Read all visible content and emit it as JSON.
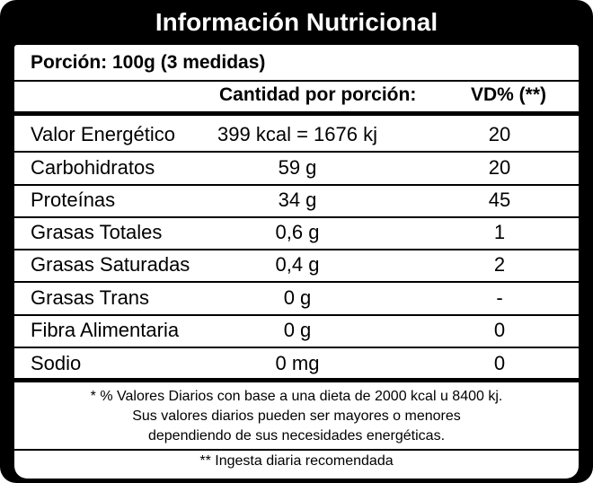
{
  "title": "Información Nutricional",
  "portion": "Porción: 100g (3 medidas)",
  "headers": {
    "quantity": "Cantidad por porción:",
    "vd": "VD% (**)"
  },
  "rows": [
    {
      "name": "Valor Energético",
      "quantity": "399 kcal = 1676 kj",
      "vd": "20"
    },
    {
      "name": "Carbohidratos",
      "quantity": "59 g",
      "vd": "20"
    },
    {
      "name": "Proteínas",
      "quantity": "34 g",
      "vd": "45"
    },
    {
      "name": "Grasas Totales",
      "quantity": "0,6 g",
      "vd": "1"
    },
    {
      "name": "Grasas Saturadas",
      "quantity": "0,4 g",
      "vd": "2"
    },
    {
      "name": "Grasas Trans",
      "quantity": "0 g",
      "vd": "-"
    },
    {
      "name": "Fibra Alimentaria",
      "quantity": "0 g",
      "vd": "0"
    },
    {
      "name": "Sodio",
      "quantity": "0 mg",
      "vd": "0"
    }
  ],
  "footnote": [
    "* % Valores Diarios con base a una dieta de 2000 kcal u 8400 kj.",
    "Sus valores diarios pueden ser mayores o menores",
    "dependiendo de sus necesidades energéticas."
  ],
  "note": "** Ingesta diaria recomendada"
}
